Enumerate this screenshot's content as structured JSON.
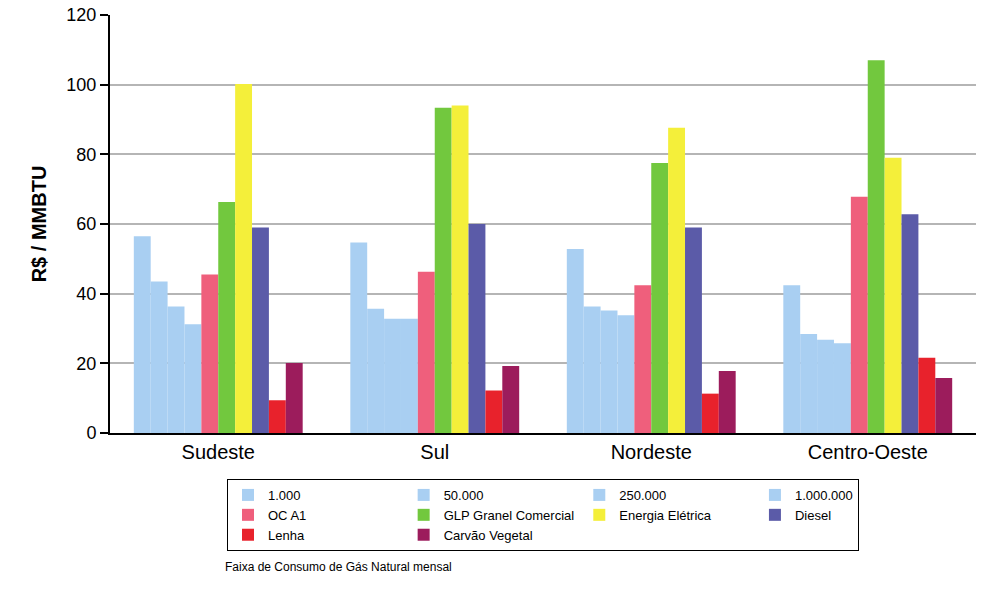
{
  "chart_data": {
    "type": "bar",
    "y_label": "R$ / MMBTU",
    "categories": [
      "Sudeste",
      "Sul",
      "Nordeste",
      "Centro-Oeste"
    ],
    "series": [
      {
        "name": "1.000",
        "color": "#a9cff2",
        "values": [
          56.5,
          54.7,
          52.8,
          42.4
        ]
      },
      {
        "name": "50.000",
        "color": "#a9cff2",
        "values": [
          43.5,
          35.7,
          36.3,
          28.4
        ]
      },
      {
        "name": "250.000",
        "color": "#a9cff2",
        "values": [
          36.3,
          32.8,
          35.2,
          26.8
        ]
      },
      {
        "name": "1.000.000",
        "color": "#a9cff2",
        "values": [
          31.2,
          32.8,
          33.8,
          25.8
        ]
      },
      {
        "name": "OC A1",
        "color": "#ef5f7c",
        "values": [
          45.5,
          46.3,
          42.4,
          67.8
        ]
      },
      {
        "name": "GLP Granel Comercial",
        "color": "#72c83e",
        "values": [
          66.3,
          93.4,
          77.5,
          107.0
        ]
      },
      {
        "name": "Energia Elétrica",
        "color": "#f4ef3a",
        "values": [
          100.2,
          94.0,
          87.6,
          79.0
        ]
      },
      {
        "name": "Diesel",
        "color": "#5b5ba8",
        "values": [
          59.0,
          60.0,
          59.0,
          62.8
        ]
      },
      {
        "name": "Lenha",
        "color": "#e8222c",
        "values": [
          9.4,
          12.2,
          11.3,
          21.6
        ]
      },
      {
        "name": "Carvão Vegetal",
        "color": "#9c1c5c",
        "values": [
          20.1,
          19.2,
          17.8,
          15.8
        ]
      }
    ],
    "ylim": [
      0,
      120
    ],
    "yticks": [
      0,
      20,
      40,
      60,
      80,
      100,
      120
    ],
    "grid": true,
    "legend": "bottom",
    "annotations": [
      "Faixa de Consumo de Gás Natural mensal"
    ]
  }
}
